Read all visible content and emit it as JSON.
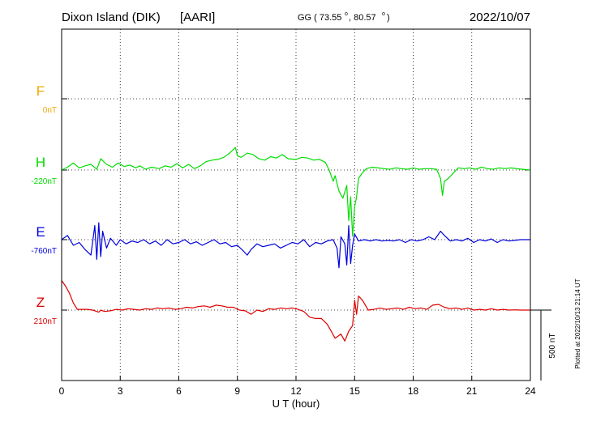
{
  "header": {
    "station": "Dixon Island (DIK)",
    "institute": "[AARI]",
    "gg_label": "GG ( 73.55",
    "gg_mid": ",  80.57",
    "gg_end": ")",
    "date": "2022/10/07"
  },
  "footer": {
    "xlabel": "U T (hour)",
    "plotted": "Plotted at 2022/10/13 21:14 UT",
    "scale_label": "500 nT"
  },
  "colors": {
    "F": "#f0a800",
    "H": "#00dd00",
    "E": "#0000dd",
    "Z": "#dd0000",
    "axis": "#000000"
  },
  "chart_data": {
    "type": "line",
    "xlabel": "U T (hour)",
    "xlim": [
      0,
      24
    ],
    "xticks": [
      "0",
      "3",
      "6",
      "9",
      "12",
      "15",
      "18",
      "21",
      "24"
    ],
    "scale_nT": 500,
    "series": [
      {
        "name": "F",
        "baseline_label": "0nT",
        "baseline": 0,
        "has_data": false,
        "x": [],
        "y": []
      },
      {
        "name": "H",
        "baseline_label": "-220nT",
        "baseline": -220,
        "has_data": true,
        "x": [
          0,
          0.3,
          0.6,
          0.9,
          1.2,
          1.5,
          1.8,
          2.0,
          2.3,
          2.6,
          2.9,
          3.2,
          3.5,
          3.8,
          4.0,
          4.3,
          4.6,
          5.0,
          5.3,
          5.6,
          5.9,
          6.2,
          6.5,
          6.8,
          7.1,
          7.4,
          7.7,
          8.0,
          8.3,
          8.6,
          8.9,
          9.0,
          9.2,
          9.5,
          9.8,
          10.1,
          10.4,
          10.7,
          11.0,
          11.3,
          11.6,
          12.0,
          12.3,
          12.6,
          12.9,
          13.2,
          13.5,
          13.7,
          13.9,
          14.0,
          14.2,
          14.4,
          14.6,
          14.7,
          14.8,
          14.9,
          15.0,
          15.1,
          15.2,
          15.4,
          15.6,
          15.9,
          16.2,
          16.5,
          16.8,
          17.1,
          17.4,
          17.7,
          18.0,
          18.3,
          18.6,
          18.9,
          19.2,
          19.4,
          19.5,
          19.6,
          19.8,
          20.0,
          20.3,
          20.6,
          20.9,
          21.2,
          21.5,
          21.8,
          22.1,
          22.4,
          22.7,
          23.0,
          23.3,
          23.6,
          24.0
        ],
        "y": [
          -220,
          -200,
          -170,
          -205,
          -190,
          -180,
          -215,
          -140,
          -180,
          -200,
          -170,
          -195,
          -185,
          -205,
          -190,
          -215,
          -200,
          -210,
          -190,
          -200,
          -175,
          -205,
          -180,
          -210,
          -190,
          -160,
          -150,
          -145,
          -130,
          -100,
          -60,
          -120,
          -130,
          -100,
          -110,
          -140,
          -150,
          -125,
          -135,
          -110,
          -140,
          -145,
          -130,
          -135,
          -150,
          -145,
          -165,
          -220,
          -300,
          -260,
          -370,
          -420,
          -330,
          -580,
          -410,
          -690,
          -480,
          -410,
          -280,
          -240,
          -210,
          -200,
          -205,
          -210,
          -215,
          -205,
          -210,
          -215,
          -205,
          -215,
          -210,
          -210,
          -215,
          -280,
          -400,
          -300,
          -280,
          -250,
          -205,
          -210,
          -205,
          -215,
          -200,
          -210,
          -215,
          -205,
          -210,
          -205,
          -210,
          -215,
          -220
        ]
      },
      {
        "name": "E",
        "baseline_label": "-760nT",
        "baseline": -760,
        "has_data": true,
        "x": [
          0,
          0.3,
          0.6,
          0.9,
          1.2,
          1.5,
          1.7,
          1.8,
          1.9,
          2.0,
          2.1,
          2.3,
          2.5,
          2.8,
          3.0,
          3.3,
          3.6,
          3.9,
          4.2,
          4.5,
          4.8,
          5.1,
          5.4,
          5.7,
          6.0,
          6.3,
          6.6,
          6.9,
          7.2,
          7.5,
          7.8,
          8.1,
          8.4,
          8.7,
          9.0,
          9.3,
          9.5,
          9.7,
          10.0,
          10.3,
          10.6,
          10.9,
          11.2,
          11.5,
          11.8,
          12.1,
          12.4,
          12.7,
          13.0,
          13.3,
          13.6,
          13.9,
          14.1,
          14.2,
          14.3,
          14.5,
          14.6,
          14.7,
          14.8,
          14.9,
          15.0,
          15.2,
          15.5,
          15.8,
          16.1,
          16.4,
          16.7,
          17.0,
          17.3,
          17.6,
          17.9,
          18.2,
          18.5,
          18.8,
          19.1,
          19.4,
          19.6,
          19.9,
          20.2,
          20.5,
          20.8,
          21.1,
          21.4,
          21.7,
          22.0,
          22.3,
          22.6,
          22.9,
          23.2,
          23.5,
          24.0
        ],
        "y": [
          -760,
          -730,
          -800,
          -780,
          -830,
          -870,
          -660,
          -900,
          -640,
          -880,
          -700,
          -820,
          -750,
          -800,
          -760,
          -790,
          -770,
          -780,
          -760,
          -790,
          -770,
          -800,
          -760,
          -790,
          -780,
          -760,
          -790,
          -775,
          -800,
          -780,
          -760,
          -790,
          -780,
          -810,
          -800,
          -840,
          -870,
          -830,
          -790,
          -810,
          -800,
          -790,
          -820,
          -800,
          -780,
          -790,
          -760,
          -810,
          -780,
          -790,
          -770,
          -760,
          -820,
          -960,
          -740,
          -790,
          -940,
          -660,
          -930,
          -800,
          -720,
          -770,
          -760,
          -770,
          -760,
          -770,
          -765,
          -770,
          -760,
          -780,
          -760,
          -770,
          -760,
          -740,
          -760,
          -700,
          -730,
          -770,
          -760,
          -770,
          -750,
          -780,
          -760,
          -770,
          -755,
          -780,
          -760,
          -770,
          -765,
          -760,
          -760
        ]
      },
      {
        "name": "Z",
        "baseline_label": "210nT",
        "baseline": 210,
        "has_data": true,
        "x": [
          0,
          0.2,
          0.4,
          0.6,
          0.8,
          1.0,
          1.3,
          1.6,
          1.9,
          2.0,
          2.2,
          2.5,
          2.8,
          3.1,
          3.4,
          3.7,
          4.0,
          4.3,
          4.6,
          4.9,
          5.2,
          5.5,
          5.8,
          6.1,
          6.4,
          6.7,
          7.0,
          7.3,
          7.6,
          7.9,
          8.2,
          8.5,
          8.8,
          9.1,
          9.4,
          9.7,
          10.0,
          10.3,
          10.6,
          10.9,
          11.2,
          11.5,
          11.8,
          12.1,
          12.4,
          12.7,
          13.0,
          13.3,
          13.6,
          13.8,
          14.0,
          14.1,
          14.3,
          14.5,
          14.7,
          14.8,
          14.9,
          15.0,
          15.1,
          15.2,
          15.4,
          15.7,
          16.0,
          16.3,
          16.6,
          16.9,
          17.2,
          17.5,
          17.8,
          18.1,
          18.4,
          18.7,
          19.0,
          19.3,
          19.6,
          19.9,
          20.2,
          20.5,
          20.8,
          21.1,
          21.4,
          21.7,
          22.0,
          22.3,
          22.6,
          22.9,
          23.2,
          23.5,
          24.0
        ],
        "y": [
          420,
          380,
          330,
          260,
          215,
          215,
          215,
          210,
          195,
          210,
          200,
          205,
          215,
          210,
          220,
          215,
          210,
          220,
          215,
          225,
          220,
          225,
          215,
          220,
          230,
          225,
          235,
          240,
          230,
          245,
          240,
          230,
          230,
          210,
          205,
          180,
          210,
          200,
          220,
          215,
          225,
          220,
          225,
          215,
          200,
          160,
          150,
          150,
          110,
          60,
          10,
          20,
          40,
          -10,
          60,
          80,
          100,
          280,
          180,
          310,
          280,
          210,
          215,
          225,
          215,
          220,
          225,
          215,
          230,
          220,
          225,
          215,
          245,
          250,
          230,
          220,
          225,
          215,
          225,
          210,
          215,
          210,
          220,
          210,
          215,
          210,
          212,
          210,
          210
        ]
      }
    ]
  }
}
